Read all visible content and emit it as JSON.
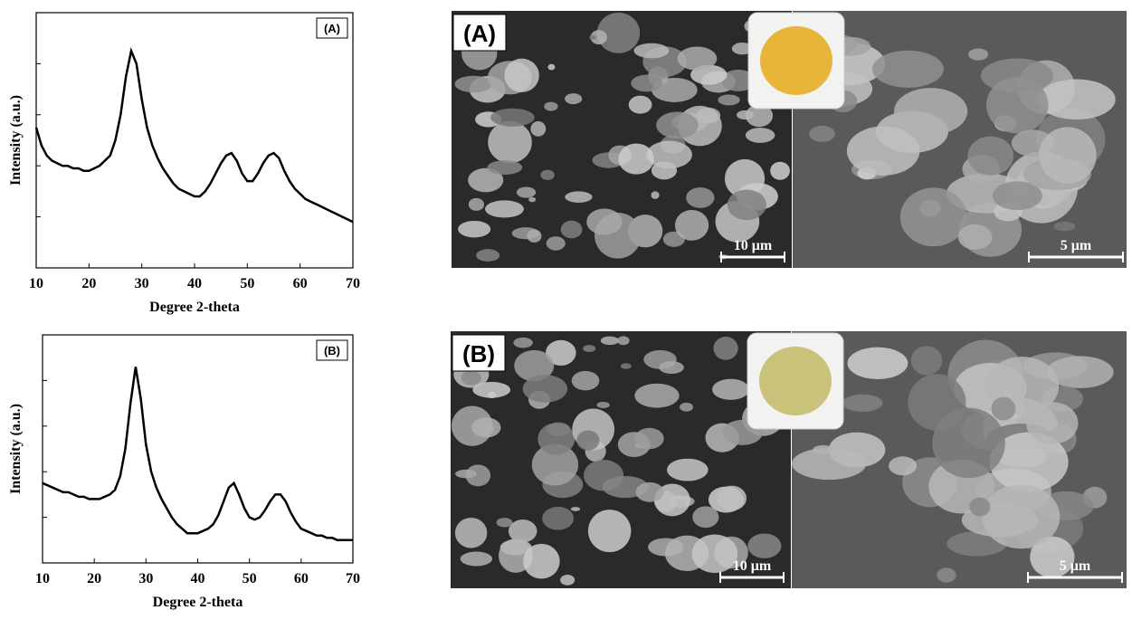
{
  "chart_data": [
    {
      "type": "line",
      "annotation": "(A)",
      "xlabel": "Degree 2-theta",
      "ylabel": "Intensity (a.u.)",
      "x": [
        10,
        11,
        12,
        13,
        14,
        15,
        16,
        17,
        18,
        19,
        20,
        21,
        22,
        23,
        24,
        25,
        26,
        27,
        28,
        29,
        30,
        31,
        32,
        33,
        34,
        35,
        36,
        37,
        38,
        39,
        40,
        41,
        42,
        43,
        44,
        45,
        46,
        47,
        48,
        49,
        50,
        51,
        52,
        53,
        54,
        55,
        56,
        57,
        58,
        59,
        60,
        61,
        62,
        63,
        64,
        65,
        66,
        67,
        68,
        69,
        70
      ],
      "series": [
        {
          "color": "#000000",
          "values": [
            55,
            48,
            44,
            42,
            41,
            40,
            40,
            39,
            39,
            38,
            38,
            39,
            40,
            42,
            44,
            50,
            60,
            75,
            85,
            80,
            66,
            55,
            48,
            43,
            39,
            36,
            33,
            31,
            30,
            29,
            28,
            28,
            30,
            33,
            37,
            41,
            44,
            45,
            42,
            37,
            34,
            34,
            37,
            41,
            44,
            45,
            43,
            38,
            34,
            31,
            29,
            27,
            26,
            25,
            24,
            23,
            22,
            21,
            20,
            19,
            18
          ]
        }
      ],
      "xlim": [
        10,
        70
      ],
      "xticks": [
        10,
        20,
        30,
        40,
        50,
        60,
        70
      ],
      "ylim": [
        0,
        100
      ]
    },
    {
      "type": "line",
      "annotation": "(B)",
      "xlabel": "Degree 2-theta",
      "ylabel": "Intensity (a.u.)",
      "x": [
        10,
        11,
        12,
        13,
        14,
        15,
        16,
        17,
        18,
        19,
        20,
        21,
        22,
        23,
        24,
        25,
        26,
        27,
        28,
        29,
        30,
        31,
        32,
        33,
        34,
        35,
        36,
        37,
        38,
        39,
        40,
        41,
        42,
        43,
        44,
        45,
        46,
        47,
        48,
        49,
        50,
        51,
        52,
        53,
        54,
        55,
        56,
        57,
        58,
        59,
        60,
        61,
        62,
        63,
        64,
        65,
        66,
        67,
        68,
        69,
        70
      ],
      "series": [
        {
          "color": "#000000",
          "values": [
            35,
            34,
            33,
            32,
            31,
            31,
            30,
            29,
            29,
            28,
            28,
            28,
            29,
            30,
            32,
            38,
            50,
            70,
            86,
            72,
            52,
            40,
            33,
            28,
            24,
            20,
            17,
            15,
            13,
            13,
            13,
            14,
            15,
            17,
            21,
            27,
            33,
            35,
            30,
            24,
            20,
            19,
            20,
            23,
            27,
            30,
            30,
            27,
            22,
            18,
            15,
            14,
            13,
            12,
            12,
            11,
            11,
            10,
            10,
            10,
            10
          ]
        }
      ],
      "xlim": [
        10,
        70
      ],
      "xticks": [
        10,
        20,
        30,
        40,
        50,
        60,
        70
      ],
      "ylim": [
        0,
        100
      ]
    }
  ],
  "images": [
    {
      "label": "(A)",
      "scale_left": "10 μm",
      "scale_right": "5 μm"
    },
    {
      "label": "(B)",
      "scale_left": "10 μm",
      "scale_right": "5 μm"
    }
  ]
}
